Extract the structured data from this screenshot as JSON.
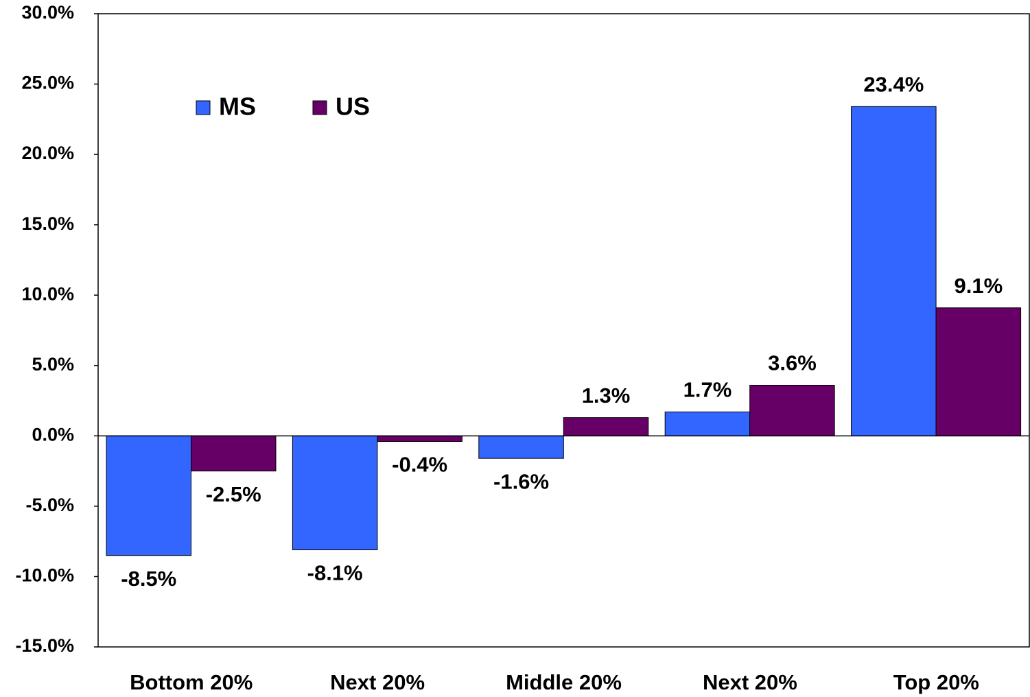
{
  "chart_data": {
    "type": "bar",
    "categories": [
      "Bottom 20%",
      "Next 20%",
      "Middle 20%",
      "Next 20%",
      "Top 20%"
    ],
    "series": [
      {
        "name": "MS",
        "color": "#3366ff",
        "values": [
          -8.5,
          -8.1,
          -1.6,
          1.7,
          23.4
        ],
        "value_labels": [
          "-8.5%",
          "-8.1%",
          "-1.6%",
          "1.7%",
          "23.4%"
        ]
      },
      {
        "name": "US",
        "color": "#660066",
        "values": [
          -2.5,
          -0.4,
          1.3,
          3.6,
          9.1
        ],
        "value_labels": [
          "-2.5%",
          "-0.4%",
          "1.3%",
          "3.6%",
          "9.1%"
        ]
      }
    ],
    "ylim": [
      -15,
      30
    ],
    "yticks": [
      {
        "value": -15,
        "label": "-15.0%"
      },
      {
        "value": -10,
        "label": "-10.0%"
      },
      {
        "value": -5,
        "label": "-5.0%"
      },
      {
        "value": 0,
        "label": "0.0%"
      },
      {
        "value": 5,
        "label": "5.0%"
      },
      {
        "value": 10,
        "label": "10.0%"
      },
      {
        "value": 15,
        "label": "15.0%"
      },
      {
        "value": 20,
        "label": "20.0%"
      },
      {
        "value": 25,
        "label": "25.0%"
      },
      {
        "value": 30,
        "label": "30.0%"
      }
    ],
    "grid": false,
    "legend": "top-left"
  }
}
